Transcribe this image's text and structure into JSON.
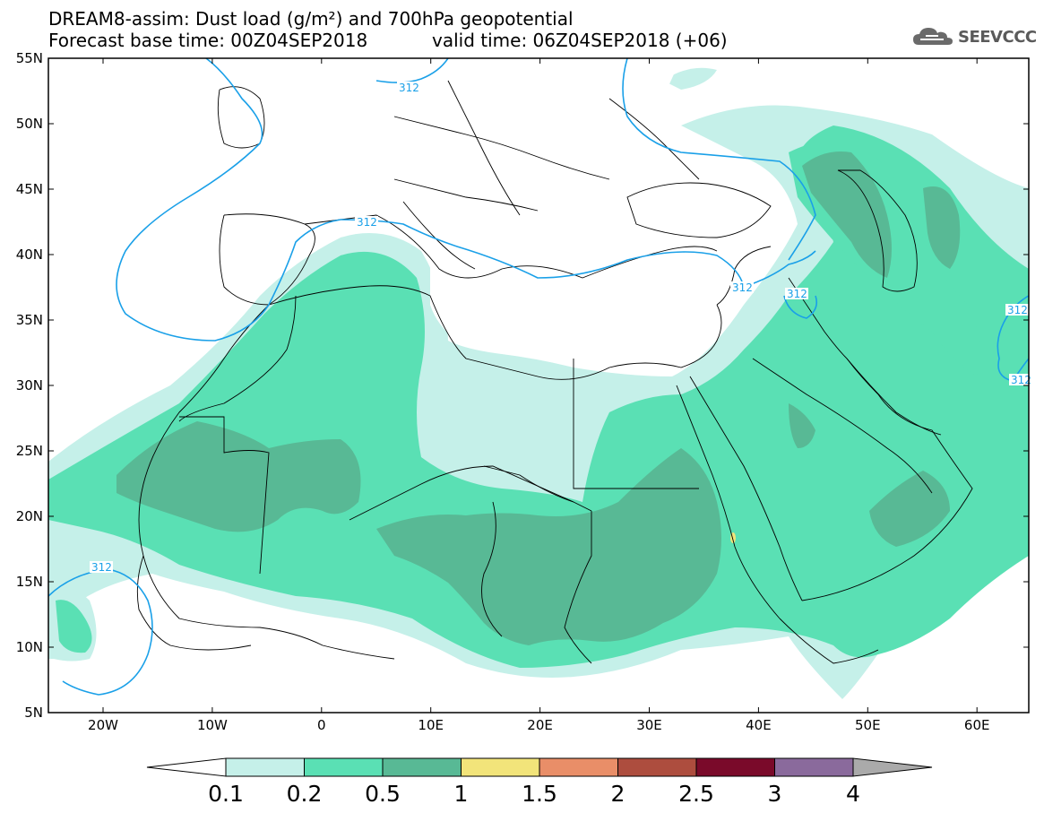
{
  "title_line1": "DREAM8-assim: Dust load (g/m²) and 700hPa geopotential",
  "title_line2": "Forecast base time: 00Z04SEP2018",
  "valid_time": "valid time: 06Z04SEP2018 (+06)",
  "logo_text": "SEEVCCC",
  "lat_labels": [
    "55N",
    "50N",
    "45N",
    "40N",
    "35N",
    "30N",
    "25N",
    "20N",
    "15N",
    "10N",
    "5N"
  ],
  "lon_labels": [
    "20W",
    "10W",
    "0",
    "10E",
    "20E",
    "30E",
    "40E",
    "50E",
    "60E"
  ],
  "contour_label": "312",
  "colorbar": {
    "labels": [
      "0.1",
      "0.2",
      "0.5",
      "1",
      "1.5",
      "2",
      "2.5",
      "3",
      "4"
    ],
    "colors": [
      "#ffffff",
      "#c5f0e9",
      "#5ae0b4",
      "#58b995",
      "#f2e47a",
      "#e98e68",
      "#ad4d3e",
      "#7a0a2a",
      "#8a6a9c",
      "#aaaaaa"
    ]
  },
  "colors": {
    "level_01": "#c5f0e9",
    "level_02": "#5ae0b4",
    "level_05": "#58b995",
    "level_1": "#f2e47a",
    "contour": "#1aa0e8"
  }
}
